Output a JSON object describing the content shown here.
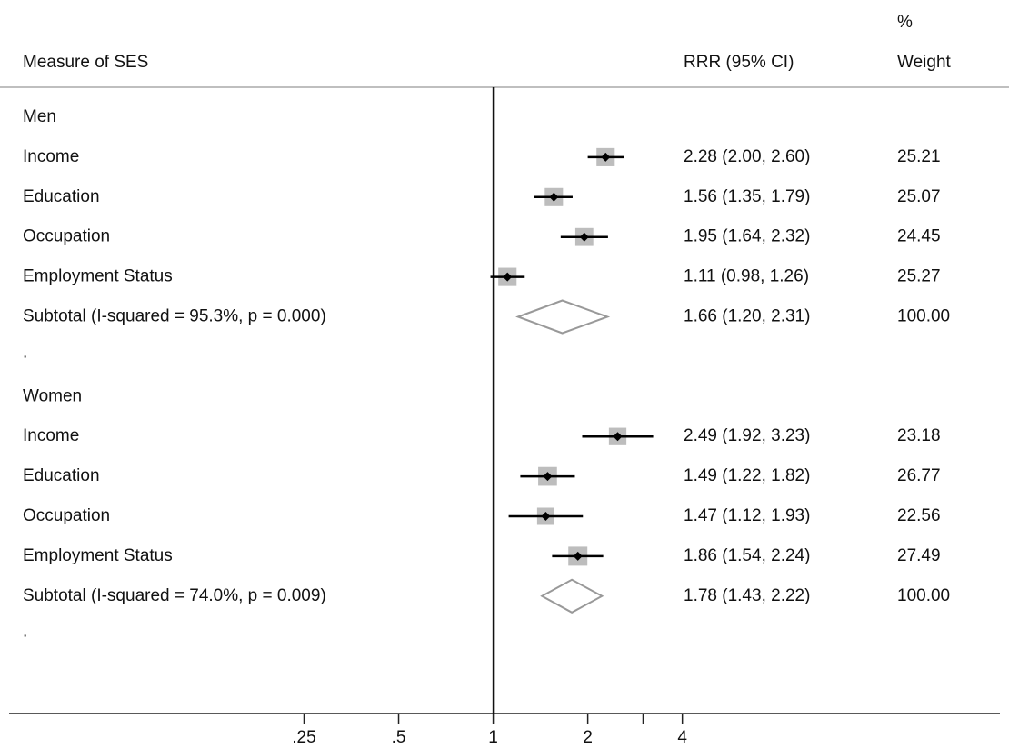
{
  "chart_data": {
    "type": "forest",
    "label_header": "Measure of SES",
    "estimate_header": "RRR (95% CI)",
    "weight_header": [
      "%",
      "Weight"
    ],
    "log_x": true,
    "xlim": [
      0.034,
      41
    ],
    "xticks": [
      {
        "value": 0.25,
        "label": ".25"
      },
      {
        "value": 0.5,
        "label": ".5"
      },
      1,
      2,
      {
        "value": 3,
        "label": null
      },
      4
    ],
    "reference": 1,
    "groups": [
      {
        "name": "Men",
        "rows": [
          {
            "label": "Income",
            "rrr": 2.28,
            "ci": [
              2.0,
              2.6
            ],
            "ci_label": "2.28 (2.00, 2.60)",
            "weight": 25.21
          },
          {
            "label": "Education",
            "rrr": 1.56,
            "ci": [
              1.35,
              1.79
            ],
            "ci_label": "1.56 (1.35, 1.79)",
            "weight": 25.07
          },
          {
            "label": "Occupation",
            "rrr": 1.95,
            "ci": [
              1.64,
              2.32
            ],
            "ci_label": "1.95 (1.64, 2.32)",
            "weight": 24.45
          },
          {
            "label": "Employment Status",
            "rrr": 1.11,
            "ci": [
              0.98,
              1.26
            ],
            "ci_label": "1.11 (0.98, 1.26)",
            "weight": 25.27
          }
        ],
        "subtotal": {
          "label": "Subtotal  (I-squared = 95.3%, p = 0.000)",
          "rrr": 1.66,
          "ci": [
            1.2,
            2.31
          ],
          "ci_label": "1.66 (1.20, 2.31)",
          "weight": {
            "value": 100,
            "label": "100.00"
          }
        },
        "end": "."
      },
      {
        "name": "Women",
        "rows": [
          {
            "label": "Income",
            "rrr": 2.49,
            "ci": [
              1.92,
              3.23
            ],
            "ci_label": "2.49 (1.92, 3.23)",
            "weight": 23.18
          },
          {
            "label": "Education",
            "rrr": 1.49,
            "ci": [
              1.22,
              1.82
            ],
            "ci_label": "1.49 (1.22, 1.82)",
            "weight": 26.77
          },
          {
            "label": "Occupation",
            "rrr": 1.47,
            "ci": [
              1.12,
              1.93
            ],
            "ci_label": "1.47 (1.12, 1.93)",
            "weight": 22.56
          },
          {
            "label": "Employment Status",
            "rrr": 1.86,
            "ci": [
              1.54,
              2.24
            ],
            "ci_label": "1.86 (1.54, 2.24)",
            "weight": 27.49
          }
        ],
        "subtotal": {
          "label": "Subtotal  (I-squared = 74.0%, p = 0.009)",
          "rrr": 1.78,
          "ci": [
            1.43,
            2.22
          ],
          "ci_label": "1.78 (1.43, 2.22)",
          "weight": {
            "value": 100,
            "label": "100.00"
          }
        },
        "end": "."
      }
    ]
  }
}
